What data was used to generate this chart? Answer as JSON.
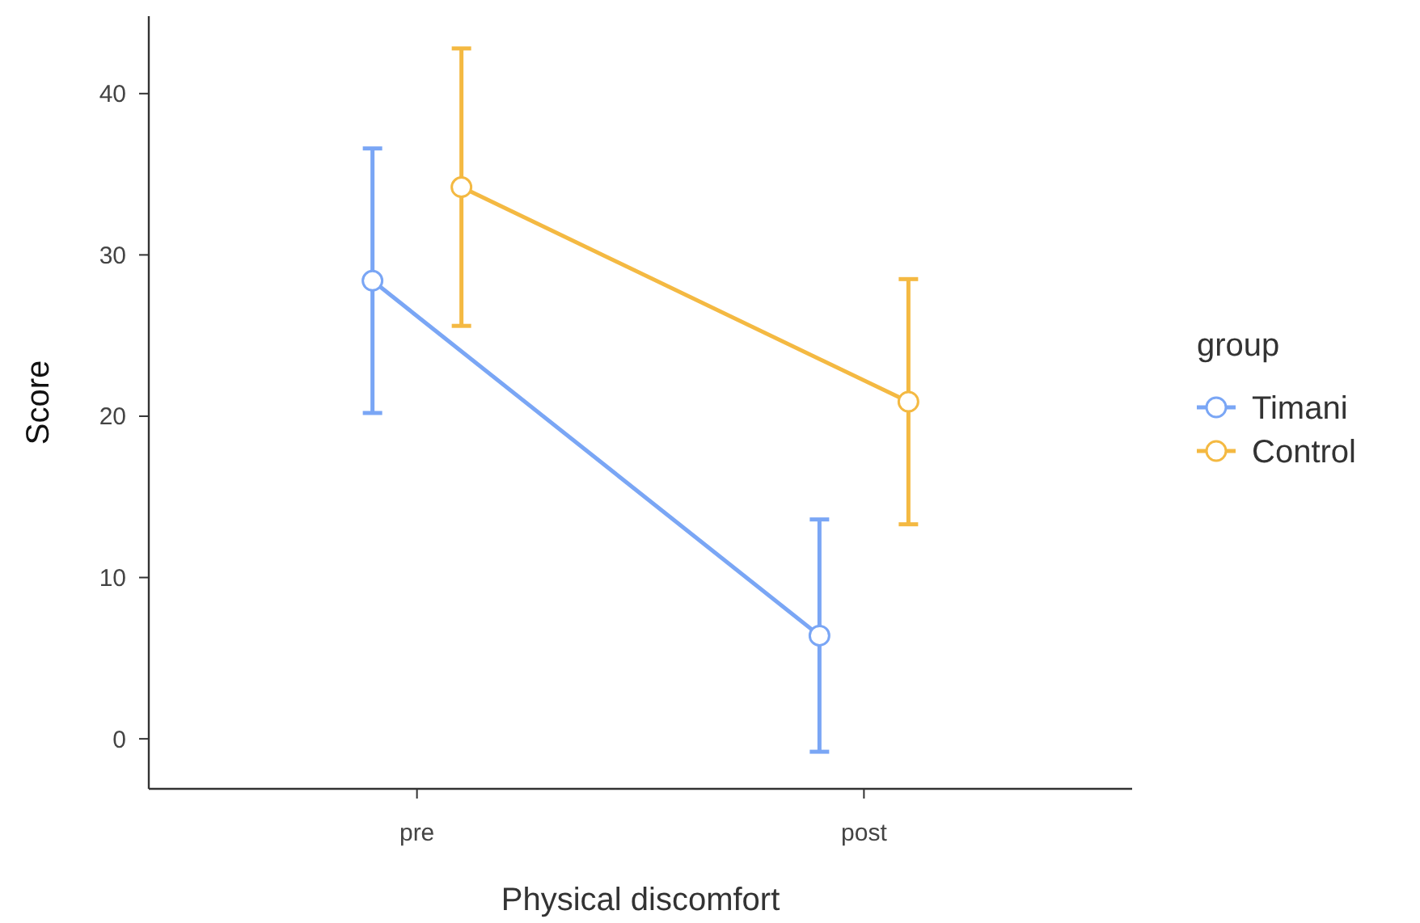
{
  "chart_data": {
    "type": "line",
    "xlabel": "Physical discomfort",
    "ylabel": "Score",
    "legend_title": "group",
    "categories": [
      "pre",
      "post"
    ],
    "series": [
      {
        "name": "Timani",
        "color": "#7aa6f5",
        "values": [
          28.4,
          6.4
        ],
        "errors": [
          [
            20.2,
            36.6
          ],
          [
            -0.8,
            13.6
          ]
        ]
      },
      {
        "name": "Control",
        "color": "#f4b942",
        "values": [
          34.2,
          20.9
        ],
        "errors": [
          [
            25.6,
            42.8
          ],
          [
            13.3,
            28.5
          ]
        ]
      }
    ],
    "ylim": [
      -3.1,
      44.8
    ],
    "yticks": [
      0,
      10,
      20,
      30,
      40
    ],
    "grid": false,
    "legend": "right",
    "marker": "circle",
    "line_style": "solid"
  }
}
